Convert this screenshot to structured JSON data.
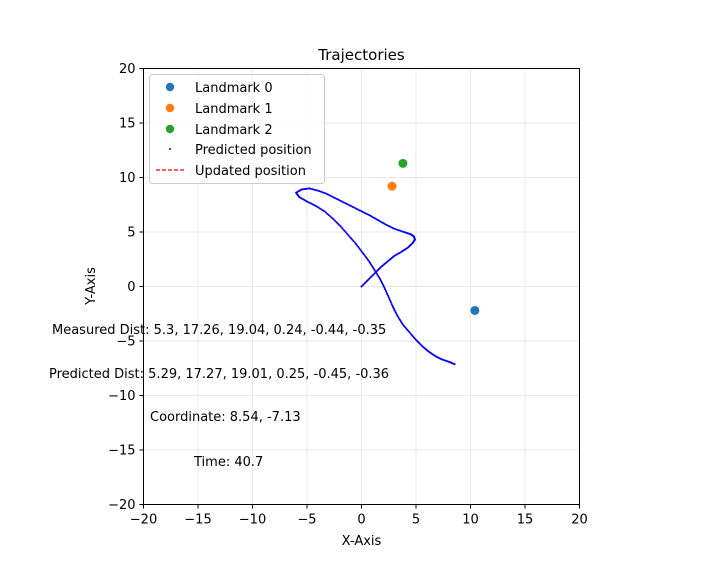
{
  "chart_data": {
    "type": "scatter",
    "title": "Trajectories",
    "xlabel": "X-Axis",
    "ylabel": "Y-Axis",
    "xlim": [
      -20,
      20
    ],
    "ylim": [
      -20,
      20
    ],
    "xticks": [
      -20,
      -15,
      -10,
      -5,
      0,
      5,
      10,
      15,
      20
    ],
    "yticks": [
      -20,
      -15,
      -10,
      -5,
      0,
      5,
      10,
      15,
      20
    ],
    "grid": true,
    "legend_position": "top-left",
    "landmarks": [
      {
        "name": "Landmark 0",
        "x": 10.4,
        "y": -2.2,
        "color": "#1f77b4"
      },
      {
        "name": "Landmark 1",
        "x": 2.8,
        "y": 9.2,
        "color": "#ff7f0e"
      },
      {
        "name": "Landmark 2",
        "x": 3.8,
        "y": 11.3,
        "color": "#2ca02c"
      }
    ],
    "series": [
      {
        "name": "Predicted position",
        "style": "dots",
        "color": "#0000ff",
        "x": [
          0.0,
          0.6,
          1.2,
          1.8,
          2.4,
          3.0,
          3.7,
          4.3,
          4.7,
          4.9,
          4.8,
          4.5,
          3.9,
          3.0,
          2.2,
          1.5,
          0.8,
          0.0,
          -0.8,
          -1.6,
          -2.4,
          -3.2,
          -4.0,
          -4.8,
          -5.5,
          -6.0,
          -5.7,
          -5.0,
          -4.2,
          -3.4,
          -2.6,
          -1.9,
          -1.2,
          -0.5,
          0.1,
          0.7,
          1.2,
          1.7,
          2.1,
          2.5,
          2.9,
          3.3,
          3.8,
          4.4,
          5.0,
          5.6,
          6.2,
          6.8,
          7.4,
          8.0,
          8.54
        ],
        "y": [
          0.0,
          0.6,
          1.2,
          1.8,
          2.3,
          2.8,
          3.2,
          3.6,
          4.0,
          4.3,
          4.6,
          4.8,
          5.0,
          5.3,
          5.7,
          6.1,
          6.5,
          6.9,
          7.3,
          7.7,
          8.1,
          8.5,
          8.8,
          9.0,
          8.9,
          8.6,
          8.2,
          7.8,
          7.4,
          6.9,
          6.2,
          5.5,
          4.7,
          3.9,
          3.1,
          2.3,
          1.5,
          0.7,
          -0.1,
          -1.0,
          -1.9,
          -2.7,
          -3.5,
          -4.2,
          -4.9,
          -5.5,
          -6.0,
          -6.4,
          -6.7,
          -6.9,
          -7.13
        ]
      },
      {
        "name": "Updated position",
        "style": "dashed",
        "color": "#ff0000",
        "x": [
          0.0,
          0.6,
          1.2,
          1.8,
          2.4,
          3.0,
          3.7,
          4.3,
          4.7,
          4.9,
          4.8,
          4.5,
          3.9,
          3.0,
          2.2,
          1.5,
          0.8,
          0.0,
          -0.8,
          -1.6,
          -2.4,
          -3.2,
          -4.0,
          -4.8,
          -5.5,
          -6.0,
          -5.7,
          -5.0,
          -4.2,
          -3.4,
          -2.6,
          -1.9,
          -1.2,
          -0.5,
          0.1,
          0.7,
          1.2,
          1.7,
          2.1,
          2.5,
          2.9,
          3.3,
          3.8,
          4.4,
          5.0,
          5.6,
          6.2,
          6.8,
          7.4,
          8.0,
          8.54
        ],
        "y": [
          0.0,
          0.6,
          1.2,
          1.8,
          2.3,
          2.8,
          3.2,
          3.6,
          4.0,
          4.3,
          4.6,
          4.8,
          5.0,
          5.3,
          5.7,
          6.1,
          6.5,
          6.9,
          7.3,
          7.7,
          8.1,
          8.5,
          8.8,
          9.0,
          8.9,
          8.6,
          8.2,
          7.8,
          7.4,
          6.9,
          6.2,
          5.5,
          4.7,
          3.9,
          3.1,
          2.3,
          1.5,
          0.7,
          -0.1,
          -1.0,
          -1.9,
          -2.7,
          -3.5,
          -4.2,
          -4.9,
          -5.5,
          -6.0,
          -6.4,
          -6.7,
          -6.9,
          -7.13
        ]
      }
    ],
    "annotations": {
      "measured_dist": "Measured Dist: 5.3, 17.26, 19.04, 0.24, -0.44, -0.35",
      "predicted_dist": "Predicted Dist: 5.29, 17.27, 19.01, 0.25, -0.45, -0.36",
      "coordinate": "Coordinate: 8.54, -7.13",
      "time": "Time: 40.7"
    }
  }
}
